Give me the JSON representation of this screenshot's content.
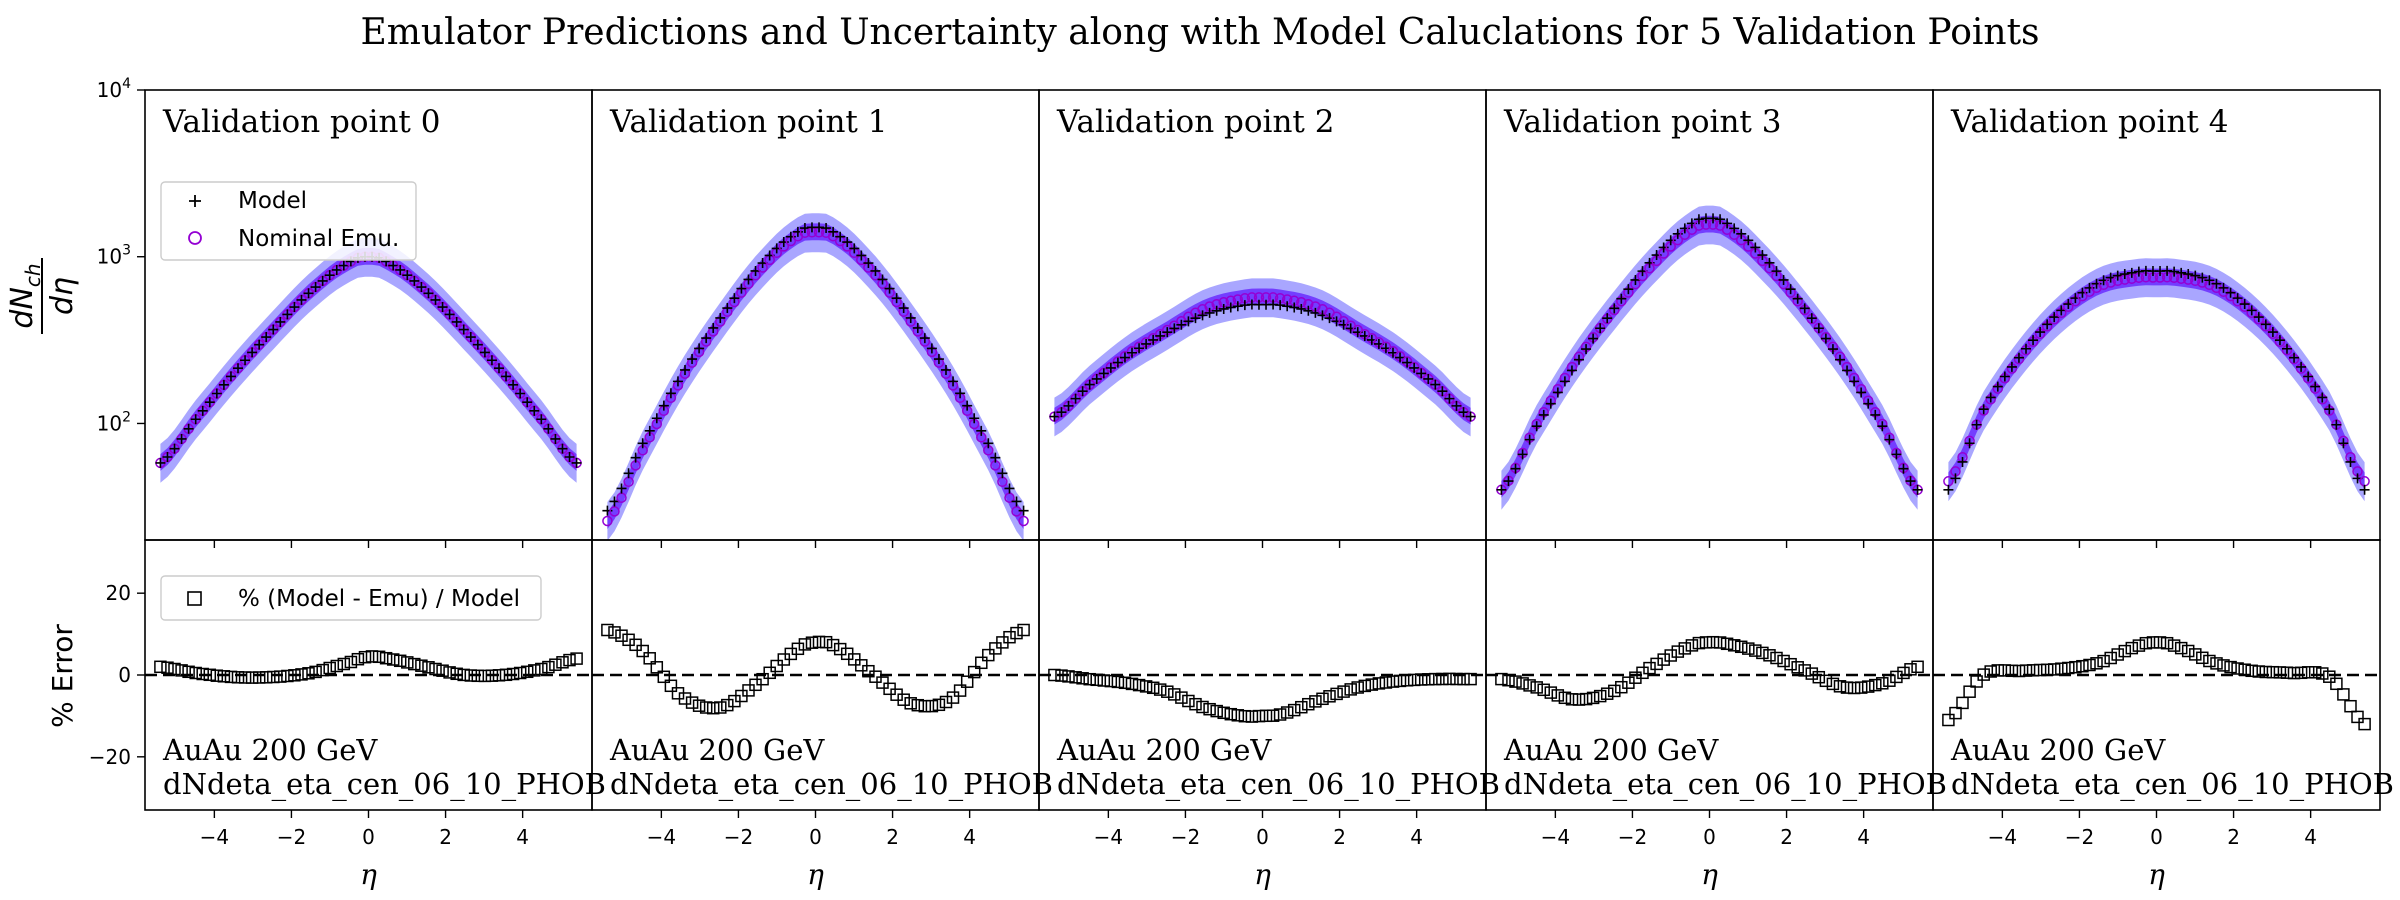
{
  "title": "Emulator Predictions and Uncertainty along with Model Caluclations for 5 Validation Points",
  "top_ylabel": "dN_ch / dη",
  "top_ylabel_num": "dN",
  "top_ylabel_sub": "ch",
  "top_ylabel_den": "dη",
  "bottom_ylabel": "% Error",
  "xlabel": "η",
  "legend_top": {
    "model": "Model",
    "emu": "Nominal Emu."
  },
  "legend_bottom": {
    "err": "% (Model - Emu) / Model"
  },
  "colors": {
    "band_outer": "#a9a6ff",
    "band_inner": "#6a2cff",
    "emu_marker": "#9400d3",
    "model_marker": "#000000"
  },
  "chart_data": [
    {
      "type": "line",
      "panel_title": "Validation point 0",
      "annotation_line1": "AuAu 200 GeV",
      "annotation_line2": "dNdeta_eta_cen_06_10_PHOB",
      "xlim": [
        -5.8,
        5.8
      ],
      "xticks": [
        -4,
        -2,
        0,
        2,
        4
      ],
      "top_ylim": [
        20,
        10000
      ],
      "top_yscale": "log",
      "top_yticks": [
        "10^2",
        "10^3",
        "10^4"
      ],
      "bottom_ylim": [
        -33,
        33
      ],
      "bottom_yticks": [
        -20,
        0,
        20
      ],
      "series": [
        {
          "name": "Model",
          "x": [
            -5.4,
            -4.5,
            -3.5,
            -2.5,
            -1.5,
            -0.5,
            0,
            0.5,
            1.5,
            2.5,
            3.5,
            4.5,
            5.4
          ],
          "values": [
            58,
            105,
            200,
            360,
            620,
            920,
            1000,
            920,
            620,
            360,
            200,
            105,
            58
          ]
        },
        {
          "name": "Nominal Emu.",
          "x": [
            -5.4,
            -4.5,
            -3.5,
            -2.5,
            -1.5,
            -0.5,
            0,
            0.5,
            1.5,
            2.5,
            3.5,
            4.5,
            5.4
          ],
          "values": [
            58,
            105,
            200,
            360,
            620,
            920,
            1000,
            920,
            620,
            360,
            200,
            105,
            58
          ]
        },
        {
          "name": "% (Model - Emu) / Model",
          "x": [
            -5.4,
            -4.5,
            -3.5,
            -2.5,
            -1.5,
            -0.5,
            0,
            0.5,
            1.5,
            2.5,
            3.5,
            4.5,
            5.4
          ],
          "values": [
            2,
            0.5,
            -0.5,
            -0.5,
            0.5,
            3,
            4.5,
            4,
            2,
            0,
            0,
            1.5,
            4
          ]
        }
      ]
    },
    {
      "type": "line",
      "panel_title": "Validation point 1",
      "annotation_line1": "AuAu 200 GeV",
      "annotation_line2": "dNdeta_eta_cen_06_10_PHOB",
      "xlim": [
        -5.8,
        5.8
      ],
      "xticks": [
        -4,
        -2,
        0,
        2,
        4
      ],
      "top_ylim": [
        20,
        10000
      ],
      "top_yscale": "log",
      "bottom_ylim": [
        -33,
        33
      ],
      "series": [
        {
          "name": "Model",
          "x": [
            -5.4,
            -4.5,
            -3.5,
            -2.5,
            -1.5,
            -0.5,
            0,
            0.5,
            1.5,
            2.5,
            3.5,
            4.5,
            5.4
          ],
          "values": [
            30,
            75,
            190,
            420,
            850,
            1380,
            1500,
            1380,
            850,
            420,
            190,
            75,
            30
          ]
        },
        {
          "name": "Nominal Emu.",
          "x": [
            -5.4,
            -4.5,
            -3.5,
            -2.5,
            -1.5,
            -0.5,
            0,
            0.5,
            1.5,
            2.5,
            3.5,
            4.5,
            5.4
          ],
          "values": [
            26,
            68,
            180,
            400,
            800,
            1300,
            1400,
            1300,
            800,
            400,
            180,
            68,
            26
          ]
        },
        {
          "name": "% (Model - Emu) / Model",
          "x": [
            -5.4,
            -4.5,
            -3.5,
            -2.5,
            -1.5,
            -0.5,
            0,
            0.5,
            1.5,
            2.5,
            3.5,
            4.5,
            5.4
          ],
          "values": [
            11,
            6,
            -5,
            -8,
            -2,
            6,
            8,
            7,
            0,
            -7,
            -6,
            5,
            11
          ]
        }
      ]
    },
    {
      "type": "line",
      "panel_title": "Validation point 2",
      "annotation_line1": "AuAu 200 GeV",
      "annotation_line2": "dNdeta_eta_cen_06_10_PHOB",
      "xlim": [
        -5.8,
        5.8
      ],
      "xticks": [
        -4,
        -2,
        0,
        2,
        4
      ],
      "top_ylim": [
        20,
        10000
      ],
      "top_yscale": "log",
      "bottom_ylim": [
        -33,
        33
      ],
      "series": [
        {
          "name": "Model",
          "x": [
            -5.4,
            -4.5,
            -3.5,
            -2.5,
            -1.5,
            -0.5,
            0,
            0.5,
            1.5,
            2.5,
            3.5,
            4.5,
            5.4
          ],
          "values": [
            110,
            170,
            255,
            350,
            450,
            510,
            515,
            510,
            450,
            350,
            255,
            170,
            110
          ]
        },
        {
          "name": "Nominal Emu.",
          "x": [
            -5.4,
            -4.5,
            -3.5,
            -2.5,
            -1.5,
            -0.5,
            0,
            0.5,
            1.5,
            2.5,
            3.5,
            4.5,
            5.4
          ],
          "values": [
            110,
            170,
            260,
            360,
            490,
            560,
            570,
            560,
            490,
            360,
            260,
            170,
            110
          ]
        },
        {
          "name": "% (Model - Emu) / Model",
          "x": [
            -5.4,
            -4.5,
            -3.5,
            -2.5,
            -1.5,
            -0.5,
            0,
            0.5,
            1.5,
            2.5,
            3.5,
            4.5,
            5.4
          ],
          "values": [
            0,
            -1,
            -2,
            -4,
            -8,
            -10,
            -10,
            -9.5,
            -6,
            -3,
            -1.5,
            -1,
            -1
          ]
        }
      ]
    },
    {
      "type": "line",
      "panel_title": "Validation point 3",
      "annotation_line1": "AuAu 200 GeV",
      "annotation_line2": "dNdeta_eta_cen_06_10_PHOB",
      "xlim": [
        -5.8,
        5.8
      ],
      "xticks": [
        -4,
        -2,
        0,
        2,
        4
      ],
      "top_ylim": [
        20,
        10000
      ],
      "top_yscale": "log",
      "bottom_ylim": [
        -33,
        33
      ],
      "series": [
        {
          "name": "Model",
          "x": [
            -5.4,
            -4.5,
            -3.5,
            -2.5,
            -1.5,
            -0.5,
            0,
            0.5,
            1.5,
            2.5,
            3.5,
            4.5,
            5.4
          ],
          "values": [
            40,
            95,
            220,
            480,
            950,
            1550,
            1700,
            1550,
            950,
            480,
            220,
            95,
            40
          ]
        },
        {
          "name": "Nominal Emu.",
          "x": [
            -5.4,
            -4.5,
            -3.5,
            -2.5,
            -1.5,
            -0.5,
            0,
            0.5,
            1.5,
            2.5,
            3.5,
            4.5,
            5.4
          ],
          "values": [
            40,
            98,
            230,
            470,
            880,
            1420,
            1560,
            1420,
            880,
            470,
            230,
            98,
            40
          ]
        },
        {
          "name": "% (Model - Emu) / Model",
          "x": [
            -5.4,
            -4.5,
            -3.5,
            -2.5,
            -1.5,
            -0.5,
            0,
            0.5,
            1.5,
            2.5,
            3.5,
            4.5,
            5.4
          ],
          "values": [
            -1,
            -3,
            -6,
            -4,
            2,
            7,
            8,
            7.5,
            5,
            1,
            -3,
            -2,
            2
          ]
        }
      ]
    },
    {
      "type": "line",
      "panel_title": "Validation point 4",
      "annotation_line1": "AuAu 200 GeV",
      "annotation_line2": "dNdeta_eta_cen_06_10_PHOB",
      "xlim": [
        -5.8,
        5.8
      ],
      "xticks": [
        -4,
        -2,
        0,
        2,
        4
      ],
      "top_ylim": [
        20,
        10000
      ],
      "top_yscale": "log",
      "bottom_ylim": [
        -33,
        33
      ],
      "series": [
        {
          "name": "Model",
          "x": [
            -5.4,
            -4.5,
            -3.5,
            -2.5,
            -1.5,
            -0.5,
            0,
            0.5,
            1.5,
            2.5,
            3.5,
            4.5,
            5.4
          ],
          "values": [
            40,
            120,
            260,
            470,
            700,
            810,
            820,
            810,
            700,
            470,
            260,
            120,
            40
          ]
        },
        {
          "name": "Nominal Emu.",
          "x": [
            -5.4,
            -4.5,
            -3.5,
            -2.5,
            -1.5,
            -0.5,
            0,
            0.5,
            1.5,
            2.5,
            3.5,
            4.5,
            5.4
          ],
          "values": [
            45,
            118,
            255,
            455,
            660,
            745,
            750,
            745,
            660,
            455,
            255,
            118,
            45
          ]
        },
        {
          "name": "% (Model - Emu) / Model",
          "x": [
            -5.4,
            -4.5,
            -3.5,
            -2.5,
            -1.5,
            -0.5,
            0,
            0.5,
            1.5,
            2.5,
            3.5,
            4.5,
            5.4
          ],
          "values": [
            -11,
            0,
            1,
            1.5,
            3,
            7,
            8,
            7,
            3,
            1,
            0.5,
            -0.5,
            -12
          ]
        }
      ]
    }
  ]
}
